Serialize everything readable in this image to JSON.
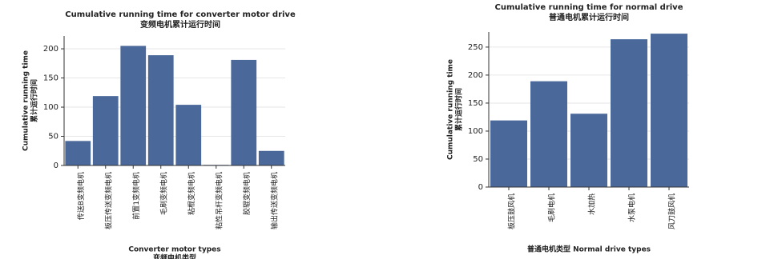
{
  "chart_data": [
    {
      "type": "bar",
      "title": "Cumulative running time for converter motor drive",
      "subtitle": "变频电机累计运行时间",
      "ylabel": [
        "Cumulative running time",
        "累计运行时间"
      ],
      "xlabel": [
        "Converter motor types",
        "变频电机类型"
      ],
      "categories": [
        "传送B变频电机",
        "板压传送变频电机",
        "前置1变频电机",
        "毛刷变频电机",
        "粘棍变频电机",
        "粘性吊杆变频电机",
        "胶辊变频电机",
        "输出传送变频电机"
      ],
      "values": [
        42,
        119,
        205,
        189,
        104,
        1,
        181,
        25
      ],
      "color": "#4a6899",
      "ylim": [
        0,
        222
      ],
      "yticks": [
        0,
        50,
        100,
        150,
        200
      ],
      "grid": true
    },
    {
      "type": "bar",
      "title": "Cumulative running time for normal drive",
      "subtitle": "普通电机累计运行时间",
      "ylabel": [
        "Cumulative running time",
        "累计运行时间"
      ],
      "xlabel": [
        "普通电机类型 Normal drive types"
      ],
      "categories": [
        "板压鼓风机",
        "毛刷电机",
        "水加热",
        "水泵电机",
        "风刀鼓风机"
      ],
      "values": [
        119,
        189,
        131,
        264,
        274
      ],
      "color": "#4a6899",
      "ylim": [
        0,
        277
      ],
      "yticks": [
        0,
        50,
        100,
        150,
        200,
        250
      ],
      "grid": true
    }
  ]
}
